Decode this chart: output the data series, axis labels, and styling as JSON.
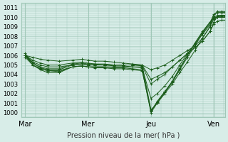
{
  "title": "",
  "xlabel": "Pression niveau de la mer( hPa )",
  "ylabel": "",
  "bg_color": "#d8ede8",
  "grid_color": "#a0c8b8",
  "line_color": "#1a5c1a",
  "ylim": [
    999.5,
    1011.5
  ],
  "yticks": [
    1000,
    1001,
    1002,
    1003,
    1004,
    1005,
    1006,
    1007,
    1008,
    1009,
    1010,
    1011
  ],
  "day_labels": [
    "Mar",
    "Mer",
    "Jeu",
    "Ven"
  ],
  "day_positions": [
    0,
    0.333,
    0.667,
    1.0
  ],
  "xlim": [
    -0.02,
    1.06
  ],
  "series": [
    {
      "points": [
        [
          0.0,
          1006.2
        ],
        [
          0.04,
          1005.2
        ],
        [
          0.08,
          1004.7
        ],
        [
          0.12,
          1004.5
        ],
        [
          0.18,
          1004.5
        ],
        [
          0.25,
          1005.0
        ],
        [
          0.3,
          1005.1
        ],
        [
          0.333,
          1005.0
        ],
        [
          0.37,
          1005.0
        ],
        [
          0.42,
          1005.0
        ],
        [
          0.47,
          1005.0
        ],
        [
          0.52,
          1005.0
        ],
        [
          0.57,
          1005.0
        ],
        [
          0.62,
          1005.0
        ],
        [
          0.667,
          1000.3
        ],
        [
          0.7,
          1001.0
        ],
        [
          0.74,
          1002.0
        ],
        [
          0.78,
          1003.0
        ],
        [
          0.82,
          1004.2
        ],
        [
          0.86,
          1005.3
        ],
        [
          0.9,
          1006.5
        ],
        [
          0.94,
          1007.8
        ],
        [
          0.98,
          1009.0
        ],
        [
          1.0,
          1010.2
        ],
        [
          1.02,
          1010.5
        ],
        [
          1.04,
          1010.5
        ],
        [
          1.06,
          1010.5
        ]
      ]
    },
    {
      "points": [
        [
          0.0,
          1006.0
        ],
        [
          0.04,
          1005.0
        ],
        [
          0.08,
          1004.5
        ],
        [
          0.12,
          1004.2
        ],
        [
          0.18,
          1004.2
        ],
        [
          0.25,
          1004.8
        ],
        [
          0.3,
          1004.9
        ],
        [
          0.333,
          1004.8
        ],
        [
          0.37,
          1004.8
        ],
        [
          0.42,
          1004.8
        ],
        [
          0.47,
          1004.8
        ],
        [
          0.52,
          1004.8
        ],
        [
          0.57,
          1004.8
        ],
        [
          0.62,
          1004.8
        ],
        [
          0.667,
          1000.1
        ],
        [
          0.7,
          1001.2
        ],
        [
          0.74,
          1002.2
        ],
        [
          0.78,
          1003.2
        ],
        [
          0.82,
          1004.5
        ],
        [
          0.86,
          1005.8
        ],
        [
          0.9,
          1007.0
        ],
        [
          0.94,
          1008.3
        ],
        [
          0.98,
          1009.4
        ],
        [
          1.0,
          1010.3
        ],
        [
          1.02,
          1010.6
        ],
        [
          1.04,
          1010.6
        ],
        [
          1.06,
          1010.6
        ]
      ]
    },
    {
      "points": [
        [
          0.0,
          1006.0
        ],
        [
          0.04,
          1005.2
        ],
        [
          0.08,
          1004.8
        ],
        [
          0.12,
          1004.6
        ],
        [
          0.18,
          1004.6
        ],
        [
          0.25,
          1005.1
        ],
        [
          0.3,
          1005.2
        ],
        [
          0.333,
          1005.1
        ],
        [
          0.37,
          1005.1
        ],
        [
          0.42,
          1005.0
        ],
        [
          0.47,
          1005.0
        ],
        [
          0.52,
          1005.0
        ],
        [
          0.57,
          1005.0
        ],
        [
          0.62,
          1004.9
        ],
        [
          0.667,
          1003.0
        ],
        [
          0.7,
          1003.5
        ],
        [
          0.74,
          1004.0
        ],
        [
          0.78,
          1004.8
        ],
        [
          0.82,
          1005.5
        ],
        [
          0.86,
          1006.2
        ],
        [
          0.9,
          1006.8
        ],
        [
          0.94,
          1007.5
        ],
        [
          0.98,
          1008.5
        ],
        [
          1.0,
          1009.5
        ],
        [
          1.02,
          1010.1
        ],
        [
          1.04,
          1010.2
        ],
        [
          1.06,
          1010.2
        ]
      ]
    },
    {
      "points": [
        [
          0.0,
          1006.0
        ],
        [
          0.04,
          1005.5
        ],
        [
          0.08,
          1005.2
        ],
        [
          0.12,
          1005.0
        ],
        [
          0.18,
          1005.0
        ],
        [
          0.25,
          1005.2
        ],
        [
          0.3,
          1005.3
        ],
        [
          0.333,
          1005.2
        ],
        [
          0.37,
          1005.1
        ],
        [
          0.42,
          1005.1
        ],
        [
          0.47,
          1005.0
        ],
        [
          0.52,
          1005.0
        ],
        [
          0.57,
          1005.0
        ],
        [
          0.62,
          1005.0
        ],
        [
          0.667,
          1004.5
        ],
        [
          0.7,
          1004.7
        ],
        [
          0.74,
          1005.0
        ],
        [
          0.78,
          1005.5
        ],
        [
          0.82,
          1006.0
        ],
        [
          0.86,
          1006.5
        ],
        [
          0.9,
          1007.0
        ],
        [
          0.94,
          1007.8
        ],
        [
          0.98,
          1009.0
        ],
        [
          1.0,
          1009.8
        ],
        [
          1.02,
          1010.0
        ],
        [
          1.04,
          1010.1
        ],
        [
          1.06,
          1010.1
        ]
      ]
    },
    {
      "points": [
        [
          0.0,
          1006.0
        ],
        [
          0.04,
          1005.3
        ],
        [
          0.08,
          1005.0
        ],
        [
          0.12,
          1004.8
        ],
        [
          0.18,
          1004.8
        ],
        [
          0.25,
          1005.0
        ],
        [
          0.3,
          1005.1
        ],
        [
          0.333,
          1005.0
        ],
        [
          0.37,
          1005.0
        ],
        [
          0.42,
          1005.0
        ],
        [
          0.47,
          1004.9
        ],
        [
          0.52,
          1004.9
        ],
        [
          0.57,
          1004.8
        ],
        [
          0.62,
          1004.7
        ],
        [
          0.667,
          1001.5
        ],
        [
          0.7,
          1002.0
        ],
        [
          0.74,
          1002.8
        ],
        [
          0.78,
          1003.8
        ],
        [
          0.82,
          1005.0
        ],
        [
          0.86,
          1006.2
        ],
        [
          0.9,
          1007.2
        ],
        [
          0.94,
          1008.2
        ],
        [
          0.98,
          1009.2
        ],
        [
          1.0,
          1010.0
        ],
        [
          1.02,
          1010.2
        ],
        [
          1.04,
          1010.2
        ],
        [
          1.06,
          1010.2
        ]
      ]
    },
    {
      "points": [
        [
          0.0,
          1006.0
        ],
        [
          0.04,
          1005.0
        ],
        [
          0.08,
          1004.6
        ],
        [
          0.12,
          1004.4
        ],
        [
          0.18,
          1004.4
        ],
        [
          0.25,
          1004.8
        ],
        [
          0.3,
          1004.9
        ],
        [
          0.333,
          1004.8
        ],
        [
          0.37,
          1004.8
        ],
        [
          0.42,
          1004.8
        ],
        [
          0.47,
          1004.7
        ],
        [
          0.52,
          1004.7
        ],
        [
          0.57,
          1004.6
        ],
        [
          0.62,
          1004.5
        ],
        [
          0.667,
          1000.0
        ],
        [
          0.7,
          1001.0
        ],
        [
          0.74,
          1002.1
        ],
        [
          0.78,
          1003.2
        ],
        [
          0.82,
          1004.6
        ],
        [
          0.86,
          1006.0
        ],
        [
          0.9,
          1007.3
        ],
        [
          0.94,
          1008.5
        ],
        [
          0.98,
          1009.5
        ],
        [
          1.0,
          1010.0
        ],
        [
          1.02,
          1010.0
        ],
        [
          1.04,
          1010.0
        ],
        [
          1.06,
          1010.0
        ]
      ]
    },
    {
      "points": [
        [
          0.0,
          1006.0
        ],
        [
          0.04,
          1005.8
        ],
        [
          0.08,
          1005.6
        ],
        [
          0.12,
          1005.5
        ],
        [
          0.18,
          1005.4
        ],
        [
          0.25,
          1005.5
        ],
        [
          0.3,
          1005.6
        ],
        [
          0.333,
          1005.5
        ],
        [
          0.37,
          1005.4
        ],
        [
          0.42,
          1005.4
        ],
        [
          0.47,
          1005.3
        ],
        [
          0.52,
          1005.2
        ],
        [
          0.57,
          1005.1
        ],
        [
          0.62,
          1005.0
        ],
        [
          0.667,
          1003.5
        ],
        [
          0.7,
          1003.8
        ],
        [
          0.74,
          1004.2
        ],
        [
          0.78,
          1004.8
        ],
        [
          0.82,
          1005.5
        ],
        [
          0.86,
          1006.2
        ],
        [
          0.9,
          1006.8
        ],
        [
          0.94,
          1007.5
        ],
        [
          0.98,
          1008.5
        ],
        [
          1.0,
          1009.3
        ],
        [
          1.02,
          1009.6
        ],
        [
          1.04,
          1009.7
        ],
        [
          1.06,
          1009.7
        ]
      ]
    },
    {
      "points": [
        [
          0.0,
          1005.8
        ],
        [
          0.04,
          1005.0
        ],
        [
          0.08,
          1004.6
        ],
        [
          0.12,
          1004.4
        ],
        [
          0.18,
          1004.3
        ],
        [
          0.25,
          1004.8
        ],
        [
          0.3,
          1004.9
        ],
        [
          0.333,
          1004.8
        ],
        [
          0.37,
          1004.7
        ],
        [
          0.42,
          1004.7
        ],
        [
          0.47,
          1004.6
        ],
        [
          0.52,
          1004.6
        ],
        [
          0.57,
          1004.5
        ],
        [
          0.62,
          1004.4
        ],
        [
          0.667,
          1000.2
        ],
        [
          0.7,
          1001.1
        ],
        [
          0.74,
          1002.2
        ],
        [
          0.78,
          1003.3
        ],
        [
          0.82,
          1004.7
        ],
        [
          0.86,
          1006.0
        ],
        [
          0.9,
          1007.2
        ],
        [
          0.94,
          1008.4
        ],
        [
          0.98,
          1009.4
        ],
        [
          1.0,
          1009.9
        ],
        [
          1.02,
          1010.0
        ],
        [
          1.04,
          1010.0
        ],
        [
          1.06,
          1010.0
        ]
      ]
    }
  ]
}
